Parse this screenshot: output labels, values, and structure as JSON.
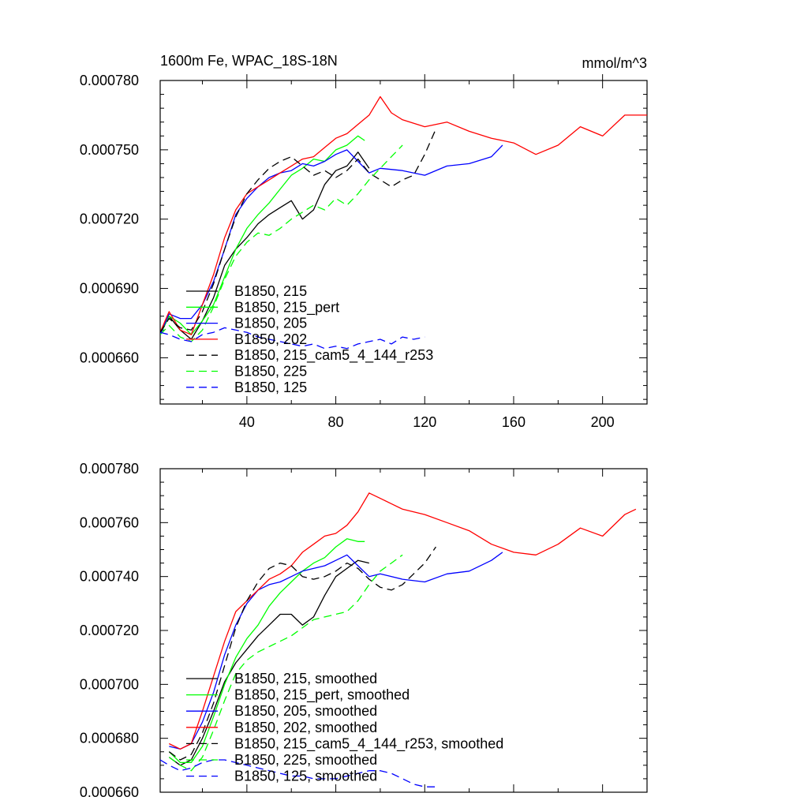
{
  "chart_data": [
    {
      "type": "line",
      "title": "1600m Fe, WPAC_18S-18N",
      "units": "mmol/m^3",
      "xlabel": "",
      "ylabel": "",
      "xlim": [
        1,
        220
      ],
      "ylim": [
        0.00064,
        0.00078
      ],
      "xticks": [
        40,
        80,
        120,
        160,
        200
      ],
      "xtick_labels": [
        "40",
        "80",
        "120",
        "160",
        "200"
      ],
      "yticks": [
        0.00066,
        0.00069,
        0.00072,
        0.00075,
        0.00078
      ],
      "ytick_labels": [
        "0.000660",
        "0.000690",
        "0.000720",
        "0.000750",
        "0.000780"
      ],
      "legend_position": "lower-left inside",
      "series": [
        {
          "name": "B1850, 215",
          "color": "#000000",
          "dash": "solid",
          "x": [
            1,
            5,
            10,
            15,
            20,
            25,
            30,
            35,
            40,
            45,
            50,
            55,
            60,
            65,
            70,
            75,
            80,
            85,
            90,
            95
          ],
          "y": [
            0.00067,
            0.000678,
            0.000672,
            0.000668,
            0.000676,
            0.000686,
            0.0007,
            0.000707,
            0.000712,
            0.000718,
            0.000722,
            0.000725,
            0.000728,
            0.00072,
            0.000724,
            0.000735,
            0.000741,
            0.000743,
            0.000749,
            0.000742
          ]
        },
        {
          "name": "B1850, 215_pert",
          "color": "#00ff00",
          "dash": "solid",
          "x": [
            1,
            5,
            10,
            15,
            20,
            25,
            30,
            35,
            40,
            45,
            50,
            55,
            60,
            65,
            70,
            75,
            80,
            85,
            90,
            93
          ],
          "y": [
            0.00067,
            0.000678,
            0.000675,
            0.00067,
            0.000676,
            0.000683,
            0.000695,
            0.000707,
            0.000716,
            0.000722,
            0.000727,
            0.000733,
            0.000739,
            0.000742,
            0.000746,
            0.000745,
            0.00075,
            0.000752,
            0.000756,
            0.000754
          ]
        },
        {
          "name": "B1850, 205",
          "color": "#0000ff",
          "dash": "solid",
          "x": [
            1,
            5,
            10,
            15,
            20,
            25,
            30,
            35,
            40,
            45,
            50,
            55,
            60,
            65,
            70,
            75,
            80,
            85,
            90,
            95,
            100,
            110,
            120,
            130,
            140,
            150,
            155
          ],
          "y": [
            0.00067,
            0.000679,
            0.000677,
            0.000677,
            0.000683,
            0.000693,
            0.000707,
            0.000722,
            0.000729,
            0.000734,
            0.000738,
            0.00074,
            0.000741,
            0.000744,
            0.000743,
            0.000745,
            0.000748,
            0.00075,
            0.000745,
            0.00074,
            0.000742,
            0.000741,
            0.000739,
            0.000743,
            0.000744,
            0.000747,
            0.000752
          ]
        },
        {
          "name": "B1850, 202",
          "color": "#ff0000",
          "dash": "solid",
          "x": [
            1,
            5,
            10,
            15,
            20,
            25,
            30,
            35,
            40,
            45,
            50,
            55,
            60,
            65,
            70,
            75,
            80,
            85,
            90,
            95,
            100,
            105,
            110,
            120,
            130,
            140,
            150,
            160,
            170,
            180,
            190,
            200,
            210,
            220
          ],
          "y": [
            0.000671,
            0.00068,
            0.000672,
            0.00067,
            0.000683,
            0.000696,
            0.000712,
            0.000724,
            0.000731,
            0.000734,
            0.000737,
            0.00074,
            0.000743,
            0.000746,
            0.000747,
            0.000751,
            0.000755,
            0.000757,
            0.000761,
            0.000765,
            0.000773,
            0.000766,
            0.000763,
            0.00076,
            0.000762,
            0.000758,
            0.000755,
            0.000753,
            0.000748,
            0.000752,
            0.00076,
            0.000756,
            0.000765,
            0.000765
          ]
        },
        {
          "name": "B1850, 215_cam5_4_144_r253",
          "color": "#000000",
          "dash": "dashed",
          "x": [
            1,
            5,
            10,
            15,
            20,
            25,
            30,
            35,
            40,
            45,
            50,
            55,
            60,
            65,
            70,
            75,
            80,
            85,
            90,
            95,
            100,
            105,
            110,
            115,
            120,
            125
          ],
          "y": [
            0.000671,
            0.000677,
            0.000673,
            0.000672,
            0.00068,
            0.000692,
            0.000707,
            0.000721,
            0.000731,
            0.000737,
            0.000742,
            0.000745,
            0.000747,
            0.000743,
            0.000739,
            0.000741,
            0.000738,
            0.000741,
            0.000746,
            0.00074,
            0.000737,
            0.000734,
            0.000737,
            0.000739,
            0.000748,
            0.000759
          ]
        },
        {
          "name": "B1850, 225",
          "color": "#00ff00",
          "dash": "dashed",
          "x": [
            1,
            5,
            10,
            15,
            20,
            25,
            30,
            35,
            40,
            45,
            50,
            55,
            60,
            65,
            70,
            75,
            80,
            85,
            90,
            95,
            100,
            105,
            110
          ],
          "y": [
            0.00067,
            0.000674,
            0.000669,
            0.000667,
            0.000672,
            0.000682,
            0.000694,
            0.000704,
            0.00071,
            0.000714,
            0.000713,
            0.000716,
            0.00072,
            0.000723,
            0.000726,
            0.000724,
            0.000729,
            0.000726,
            0.000731,
            0.000737,
            0.000742,
            0.000747,
            0.000752
          ]
        },
        {
          "name": "B1850, 125",
          "color": "#0000ff",
          "dash": "dashed",
          "x": [
            1,
            5,
            10,
            15,
            20,
            25,
            30,
            35,
            40,
            45,
            50,
            55,
            60,
            65,
            70,
            75,
            80,
            85,
            90,
            95,
            100,
            105,
            110,
            115,
            120
          ],
          "y": [
            0.000671,
            0.00067,
            0.000668,
            0.000667,
            0.00067,
            0.000671,
            0.000673,
            0.000672,
            0.000671,
            0.000669,
            0.000668,
            0.000667,
            0.000666,
            0.000665,
            0.000666,
            0.000664,
            0.000665,
            0.000664,
            0.000666,
            0.000667,
            0.000668,
            0.000666,
            0.000669,
            0.000668,
            0.000669
          ]
        }
      ]
    },
    {
      "type": "line",
      "title": "",
      "xlabel": "",
      "ylabel": "",
      "xlim": [
        1,
        220
      ],
      "ylim": [
        0.00066,
        0.00078
      ],
      "xticks": [
        40,
        80,
        120,
        160,
        200
      ],
      "xtick_labels": [],
      "yticks": [
        0.00066,
        0.00068,
        0.0007,
        0.00072,
        0.00074,
        0.00076,
        0.00078
      ],
      "ytick_labels": [
        "0.000660",
        "0.000680",
        "0.000700",
        "0.000720",
        "0.000740",
        "0.000760",
        "0.000780"
      ],
      "legend_position": "lower-left inside",
      "series": [
        {
          "name": "B1850, 215, smoothed",
          "color": "#000000",
          "dash": "solid",
          "x": [
            5,
            10,
            15,
            20,
            25,
            30,
            35,
            40,
            45,
            50,
            55,
            60,
            65,
            70,
            75,
            80,
            85,
            90,
            95
          ],
          "y": [
            0.000673,
            0.00067,
            0.000672,
            0.00068,
            0.00069,
            0.000701,
            0.000708,
            0.000713,
            0.000718,
            0.000722,
            0.000726,
            0.000726,
            0.000722,
            0.000725,
            0.000733,
            0.00074,
            0.000743,
            0.000746,
            0.000745
          ]
        },
        {
          "name": "B1850, 215_pert, smoothed",
          "color": "#00ff00",
          "dash": "solid",
          "x": [
            5,
            10,
            15,
            20,
            25,
            30,
            35,
            40,
            45,
            50,
            55,
            60,
            65,
            70,
            75,
            80,
            85,
            90,
            93
          ],
          "y": [
            0.000675,
            0.000671,
            0.000671,
            0.000677,
            0.000688,
            0.0007,
            0.00071,
            0.000717,
            0.000722,
            0.000729,
            0.000734,
            0.000738,
            0.000742,
            0.000745,
            0.000747,
            0.000751,
            0.000754,
            0.000753,
            0.000753
          ]
        },
        {
          "name": "B1850, 205, smoothed",
          "color": "#0000ff",
          "dash": "solid",
          "x": [
            5,
            10,
            15,
            20,
            25,
            30,
            35,
            40,
            45,
            50,
            55,
            60,
            65,
            70,
            75,
            80,
            85,
            90,
            95,
            100,
            110,
            120,
            130,
            140,
            150,
            155
          ],
          "y": [
            0.000677,
            0.000676,
            0.000678,
            0.000686,
            0.000697,
            0.000711,
            0.000722,
            0.00073,
            0.000735,
            0.000737,
            0.000738,
            0.00074,
            0.000742,
            0.000743,
            0.000744,
            0.000746,
            0.000748,
            0.000744,
            0.00074,
            0.000741,
            0.000739,
            0.000738,
            0.000741,
            0.000742,
            0.000746,
            0.000749
          ]
        },
        {
          "name": "B1850, 202, smoothed",
          "color": "#ff0000",
          "dash": "solid",
          "x": [
            5,
            10,
            15,
            20,
            25,
            30,
            35,
            40,
            45,
            50,
            55,
            60,
            65,
            70,
            75,
            80,
            85,
            90,
            95,
            100,
            105,
            110,
            120,
            130,
            140,
            150,
            160,
            170,
            180,
            190,
            200,
            210,
            215
          ],
          "y": [
            0.000678,
            0.000676,
            0.000678,
            0.00069,
            0.000703,
            0.000716,
            0.000727,
            0.000731,
            0.000735,
            0.000739,
            0.000741,
            0.000744,
            0.000749,
            0.000752,
            0.000755,
            0.000756,
            0.000759,
            0.000764,
            0.000771,
            0.000769,
            0.000767,
            0.000765,
            0.000763,
            0.00076,
            0.000757,
            0.000752,
            0.000749,
            0.000748,
            0.000752,
            0.000758,
            0.000755,
            0.000763,
            0.000765
          ]
        },
        {
          "name": "B1850, 215_cam5_4_144_r253, smoothed",
          "color": "#000000",
          "dash": "dashed",
          "x": [
            5,
            10,
            15,
            20,
            25,
            30,
            35,
            40,
            45,
            50,
            55,
            60,
            65,
            70,
            75,
            80,
            85,
            90,
            95,
            100,
            105,
            110,
            115,
            120,
            125
          ],
          "y": [
            0.000675,
            0.000672,
            0.000674,
            0.000682,
            0.000693,
            0.000707,
            0.000721,
            0.000731,
            0.000738,
            0.000743,
            0.000745,
            0.000744,
            0.00074,
            0.000739,
            0.00074,
            0.000742,
            0.000745,
            0.000743,
            0.000739,
            0.000736,
            0.000735,
            0.000737,
            0.000741,
            0.000745,
            0.000751
          ]
        },
        {
          "name": "B1850, 225, smoothed",
          "color": "#00ff00",
          "dash": "dashed",
          "x": [
            5,
            10,
            15,
            20,
            25,
            30,
            35,
            40,
            45,
            50,
            55,
            60,
            65,
            70,
            75,
            80,
            85,
            90,
            95,
            100,
            105,
            110
          ],
          "y": [
            0.000673,
            0.00067,
            0.000668,
            0.000673,
            0.000683,
            0.000694,
            0.000704,
            0.000709,
            0.000712,
            0.000714,
            0.000716,
            0.000718,
            0.000721,
            0.000724,
            0.000725,
            0.000726,
            0.000727,
            0.000731,
            0.000737,
            0.000742,
            0.000745,
            0.000748
          ]
        },
        {
          "name": "B1850, 125, smoothed",
          "color": "#0000ff",
          "dash": "dashed",
          "x": [
            1,
            5,
            10,
            15,
            20,
            25,
            30,
            35,
            40,
            45,
            50,
            55,
            60,
            65,
            70,
            75,
            80,
            85,
            90,
            95,
            100,
            105,
            110,
            115,
            120,
            125
          ],
          "y": [
            0.000672,
            0.00067,
            0.000668,
            0.000669,
            0.000671,
            0.000672,
            0.000672,
            0.000671,
            0.00067,
            0.000669,
            0.000668,
            0.000667,
            0.000666,
            0.000666,
            0.000665,
            0.000665,
            0.000665,
            0.000666,
            0.000667,
            0.000668,
            0.000668,
            0.000667,
            0.000665,
            0.000663,
            0.000662,
            0.000662
          ]
        }
      ]
    }
  ]
}
